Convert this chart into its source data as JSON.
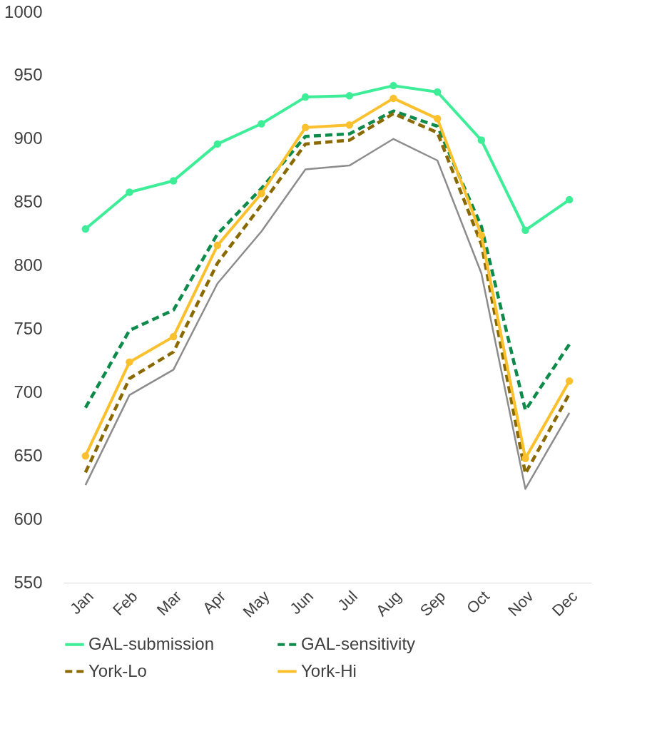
{
  "chart_data": {
    "type": "line",
    "categories": [
      "Jan",
      "Feb",
      "Mar",
      "Apr",
      "May",
      "Jun",
      "Jul",
      "Aug",
      "Sep",
      "Oct",
      "Nov",
      "Dec"
    ],
    "ylim": [
      550,
      1000
    ],
    "yticks": [
      550,
      600,
      650,
      700,
      750,
      800,
      850,
      900,
      950,
      1000
    ],
    "grid": false,
    "legend": "bottom",
    "series": [
      {
        "color": "#8c8c8c",
        "line_style": "solid",
        "marker": "none",
        "values": [
          627,
          698,
          718,
          786,
          827,
          876,
          879,
          900,
          883,
          794,
          624,
          684
        ]
      },
      {
        "name": "GAL-submission",
        "color": "#3ded97",
        "line_style": "solid",
        "marker": "circle",
        "values": [
          829,
          858,
          867,
          896,
          912,
          933,
          934,
          942,
          937,
          899,
          828,
          852
        ]
      },
      {
        "name": "GAL-sensitivity",
        "color": "#0e8a4a",
        "line_style": "dashed",
        "marker": "none",
        "values": [
          688,
          749,
          765,
          825,
          861,
          902,
          904,
          922,
          910,
          831,
          686,
          738
        ]
      },
      {
        "name": "York-Lo",
        "color": "#8a6a00",
        "line_style": "dashed",
        "marker": "none",
        "values": [
          637,
          711,
          732,
          802,
          848,
          896,
          899,
          920,
          905,
          817,
          636,
          699
        ]
      },
      {
        "name": "York-Hi",
        "color": "#fbc02d",
        "line_style": "solid",
        "marker": "circle",
        "values": [
          650,
          724,
          744,
          816,
          857,
          909,
          911,
          932,
          916,
          824,
          648,
          709
        ]
      }
    ]
  }
}
